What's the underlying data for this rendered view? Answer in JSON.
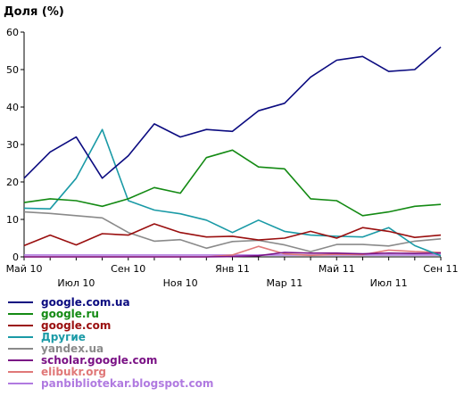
{
  "chart_data": {
    "type": "line",
    "title": "",
    "ylabel": "Доля (%)",
    "xlabel": "",
    "ylim": [
      0,
      60
    ],
    "yticks": [
      0,
      10,
      20,
      30,
      40,
      50,
      60
    ],
    "grid": false,
    "legend_position": "bottom",
    "x": [
      "2010-05",
      "2010-06",
      "2010-07",
      "2010-08",
      "2010-09",
      "2010-10",
      "2010-11",
      "2010-12",
      "2011-01",
      "2011-02",
      "2011-03",
      "2011-04",
      "2011-05",
      "2011-06",
      "2011-07",
      "2011-08",
      "2011-09"
    ],
    "x_ticks_top_row": [
      "Май 10",
      "Сен 10",
      "Янв 11",
      "Май 11",
      "Сен 11"
    ],
    "x_ticks_bottom_row": [
      "Июл 10",
      "Ноя 10",
      "Мар 11",
      "Июл 11"
    ],
    "series": [
      {
        "name": "google.com.ua",
        "color": "#0b0b80",
        "values": [
          21,
          28,
          32,
          21,
          27,
          35.5,
          32,
          34,
          33.5,
          39,
          41,
          48,
          52.5,
          53.5,
          49.5,
          50,
          56
        ]
      },
      {
        "name": "google.ru",
        "color": "#138a13",
        "values": [
          14.5,
          15.5,
          15,
          13.5,
          15.5,
          18.5,
          17,
          26.5,
          28.5,
          24,
          23.5,
          15.5,
          15,
          11,
          12,
          13.5,
          14
        ]
      },
      {
        "name": "google.com",
        "color": "#9a0f0f",
        "values": [
          3,
          5.8,
          3.2,
          6.2,
          5.8,
          8.8,
          6.5,
          5.3,
          5.5,
          4.5,
          5.0,
          6.8,
          5.0,
          7.8,
          6.8,
          5.2,
          5.8
        ]
      },
      {
        "name": "Другие",
        "color": "#1a9aa6",
        "values": [
          13,
          12.8,
          21,
          34,
          15,
          12.5,
          11.5,
          9.8,
          6.5,
          9.8,
          6.8,
          5.8,
          5.5,
          5.3,
          7.8,
          3.0,
          0.3
        ]
      },
      {
        "name": "yandex.ua",
        "color": "#8a8a8a",
        "values": [
          12,
          11.6,
          11,
          10.4,
          6.5,
          4.2,
          4.6,
          2.3,
          4.1,
          4.4,
          3.2,
          1.4,
          3.3,
          3.3,
          2.9,
          4.2,
          4.8
        ]
      },
      {
        "name": "scholar.google.com",
        "color": "#7a1285",
        "values": [
          0,
          0,
          0,
          0,
          0,
          0,
          0,
          0,
          0.1,
          0.3,
          1.2,
          1.0,
          1.0,
          0.8,
          1.0,
          0.9,
          1.0
        ]
      },
      {
        "name": "elibukr.org",
        "color": "#e07878",
        "values": [
          0,
          0,
          0,
          0,
          0,
          0,
          0,
          0,
          0.5,
          2.8,
          0.8,
          0.4,
          0.7,
          0.6,
          1.8,
          1.4,
          1.2
        ]
      },
      {
        "name": "panbibliotekar.blogspot.com",
        "color": "#b07ae0",
        "values": [
          0.5,
          0.5,
          0.5,
          0.5,
          0.5,
          0.5,
          0.5,
          0.5,
          0.5,
          0.5,
          0.5,
          0.5,
          0.5,
          0.5,
          0.5,
          0.5,
          0.5
        ]
      }
    ]
  }
}
